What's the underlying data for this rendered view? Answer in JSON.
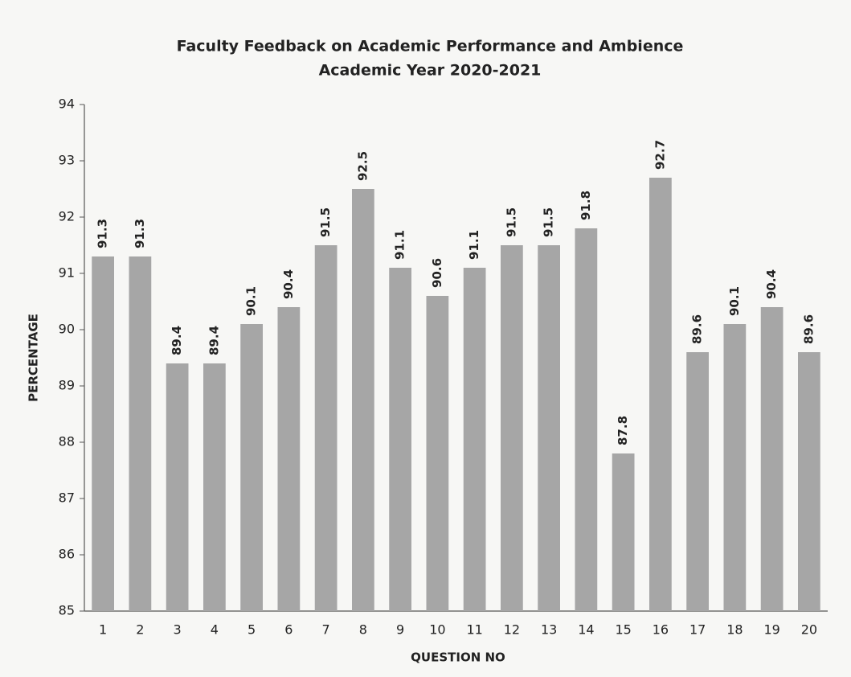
{
  "chart_data": {
    "type": "bar",
    "title": "Faculty Feedback on Academic Performance and Ambience",
    "subtitle": "Academic Year 2020-2021",
    "x_label": "QUESTION NO",
    "y_label": "PERCENTAGE",
    "categories": [
      "1",
      "2",
      "3",
      "4",
      "5",
      "6",
      "7",
      "8",
      "9",
      "10",
      "11",
      "12",
      "13",
      "14",
      "15",
      "16",
      "17",
      "18",
      "19",
      "20"
    ],
    "values": [
      91.3,
      91.3,
      89.4,
      89.4,
      90.1,
      90.4,
      91.5,
      92.5,
      91.1,
      90.6,
      91.1,
      91.5,
      91.5,
      91.8,
      87.8,
      92.7,
      89.6,
      90.1,
      90.4,
      89.6
    ],
    "color": "#a6a6a6",
    "ylim": [
      85,
      94
    ],
    "yticks": [
      85,
      86,
      87,
      88,
      89,
      90,
      91,
      92,
      93,
      94
    ],
    "grid": false,
    "data_labels": true
  }
}
